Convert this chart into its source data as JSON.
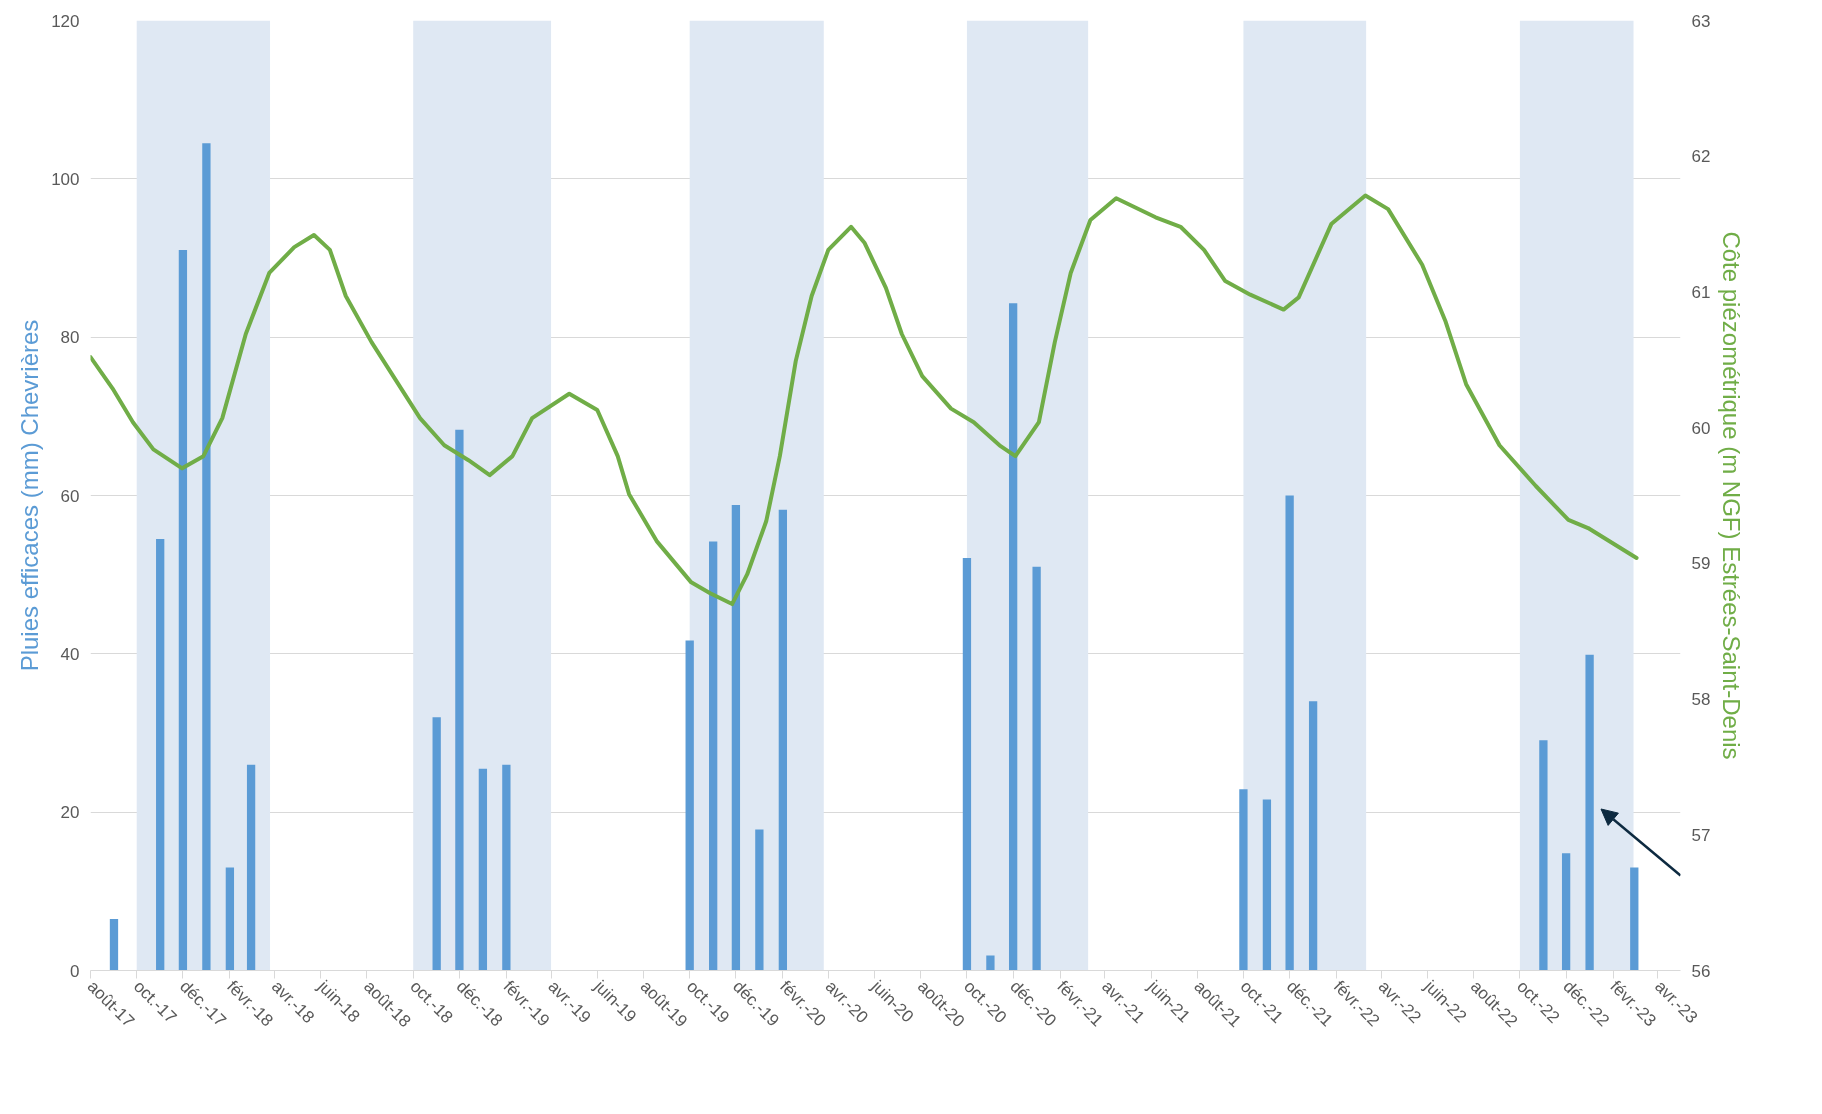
{
  "chart_data": {
    "type": "bar",
    "ylabel": "Pluies efficaces (mm) Chevrières",
    "y2label": "Côte piézométrique (m NGF) Estrées-Saint-Denis",
    "ylim": [
      0,
      120
    ],
    "yticks": [
      0,
      20,
      40,
      60,
      80,
      100,
      120
    ],
    "y2lim": [
      56,
      63
    ],
    "y2ticks": [
      56,
      57,
      58,
      59,
      60,
      61,
      62,
      63
    ],
    "xlim": [
      "2017-08-01",
      "2023-05-01"
    ],
    "xticks": [
      {
        "value": "2017-08",
        "label": "août-17"
      },
      {
        "value": "2017-10",
        "label": "oct.-17"
      },
      {
        "value": "2017-12",
        "label": "déc.-17"
      },
      {
        "value": "2018-02",
        "label": "févr.-18"
      },
      {
        "value": "2018-04",
        "label": "avr.-18"
      },
      {
        "value": "2018-06",
        "label": "juin-18"
      },
      {
        "value": "2018-08",
        "label": "août-18"
      },
      {
        "value": "2018-10",
        "label": "oct.-18"
      },
      {
        "value": "2018-12",
        "label": "déc.-18"
      },
      {
        "value": "2019-02",
        "label": "févr.-19"
      },
      {
        "value": "2019-04",
        "label": "avr.-19"
      },
      {
        "value": "2019-06",
        "label": "juin-19"
      },
      {
        "value": "2019-08",
        "label": "août-19"
      },
      {
        "value": "2019-10",
        "label": "oct.-19"
      },
      {
        "value": "2019-12",
        "label": "déc.-19"
      },
      {
        "value": "2020-02",
        "label": "févr.-20"
      },
      {
        "value": "2020-04",
        "label": "avr.-20"
      },
      {
        "value": "2020-06",
        "label": "juin-20"
      },
      {
        "value": "2020-08",
        "label": "août-20"
      },
      {
        "value": "2020-10",
        "label": "oct.-20"
      },
      {
        "value": "2020-12",
        "label": "déc.-20"
      },
      {
        "value": "2021-02",
        "label": "févr.-21"
      },
      {
        "value": "2021-04",
        "label": "avr.-21"
      },
      {
        "value": "2021-06",
        "label": "juin-21"
      },
      {
        "value": "2021-08",
        "label": "août-21"
      },
      {
        "value": "2021-10",
        "label": "oct.-21"
      },
      {
        "value": "2021-12",
        "label": "déc.-21"
      },
      {
        "value": "2022-02",
        "label": "févr.-22"
      },
      {
        "value": "2022-04",
        "label": "avr.-22"
      },
      {
        "value": "2022-06",
        "label": "juin-22"
      },
      {
        "value": "2022-08",
        "label": "août-22"
      },
      {
        "value": "2022-10",
        "label": "oct.-22"
      },
      {
        "value": "2022-12",
        "label": "déc.-22"
      },
      {
        "value": "2023-02",
        "label": "févr.-23"
      },
      {
        "value": "2023-04",
        "label": "avr.-23"
      }
    ],
    "grid": "y",
    "bands": [
      {
        "axis": "x",
        "from": "2017-10-01",
        "to": "2018-03-26",
        "color": "#dfe8f3"
      },
      {
        "axis": "x",
        "from": "2018-10-01",
        "to": "2019-04-01",
        "color": "#dfe8f3"
      },
      {
        "axis": "x",
        "from": "2019-10-01",
        "to": "2020-03-26",
        "color": "#dfe8f3"
      },
      {
        "axis": "x",
        "from": "2020-10-01",
        "to": "2021-03-10",
        "color": "#dfe8f3"
      },
      {
        "axis": "x",
        "from": "2021-10-01",
        "to": "2022-03-12",
        "color": "#dfe8f3"
      },
      {
        "axis": "x",
        "from": "2022-10-01",
        "to": "2023-02-28",
        "color": "#dfe8f3"
      }
    ],
    "series": [
      {
        "color": "#5b9bd5",
        "x": [
          "2017-09",
          "2017-11",
          "2017-12",
          "2018-01",
          "2018-02",
          "2018-03",
          "2018-11",
          "2018-12",
          "2019-01",
          "2019-02",
          "2019-10",
          "2019-11",
          "2019-12",
          "2020-01",
          "2020-02",
          "2020-10",
          "2020-11",
          "2020-12",
          "2021-01",
          "2021-10",
          "2021-11",
          "2021-12",
          "2022-01",
          "2022-11",
          "2022-12",
          "2023-01",
          "2023-03"
        ],
        "values": [
          6.5,
          54.5,
          91,
          104.5,
          13,
          26,
          32,
          68.3,
          25.5,
          26,
          41.7,
          54.2,
          58.8,
          17.8,
          58.2,
          52.1,
          1.9,
          84.3,
          51,
          22.9,
          21.6,
          60,
          34,
          29.1,
          14.8,
          39.9,
          13
        ]
      },
      {
        "type": "line",
        "axis": "y2",
        "color": "#70ad47",
        "x": [
          "2017-08-01",
          "2017-08-30",
          "2017-09-26",
          "2017-10-23",
          "2017-11-30",
          "2017-12-28",
          "2018-01-22",
          "2018-02-22",
          "2018-03-25",
          "2018-04-27",
          "2018-05-23",
          "2018-06-13",
          "2018-07-04",
          "2018-08-07",
          "2018-09-08",
          "2018-10-10",
          "2018-11-11",
          "2018-12-13",
          "2019-01-10",
          "2019-02-09",
          "2019-03-07",
          "2019-04-25",
          "2019-06-01",
          "2019-06-28",
          "2019-07-13",
          "2019-08-19",
          "2019-10-03",
          "2019-10-28",
          "2019-11-26",
          "2019-12-16",
          "2020-01-10",
          "2020-01-28",
          "2020-02-18",
          "2020-03-10",
          "2020-04-01",
          "2020-05-01",
          "2020-05-19",
          "2020-06-16",
          "2020-07-07",
          "2020-08-03",
          "2020-09-10",
          "2020-10-10",
          "2020-11-13",
          "2020-12-04",
          "2021-01-04",
          "2021-01-25",
          "2021-02-15",
          "2021-03-13",
          "2021-04-16",
          "2021-06-07",
          "2021-07-10",
          "2021-08-10",
          "2021-09-07",
          "2021-10-10",
          "2021-11-23",
          "2021-12-13",
          "2022-01-25",
          "2022-03-11",
          "2022-04-10",
          "2022-05-25",
          "2022-06-25",
          "2022-07-22",
          "2022-09-04",
          "2022-10-22",
          "2022-12-04",
          "2022-12-30",
          "2023-03-04"
        ],
        "values": [
          60.52,
          60.29,
          60.04,
          59.84,
          59.7,
          59.79,
          60.07,
          60.69,
          61.14,
          61.33,
          61.42,
          61.31,
          60.97,
          60.63,
          60.35,
          60.07,
          59.87,
          59.76,
          59.65,
          59.79,
          60.07,
          60.25,
          60.13,
          59.79,
          59.51,
          59.16,
          58.86,
          58.78,
          58.7,
          58.92,
          59.31,
          59.79,
          60.49,
          60.97,
          61.31,
          61.48,
          61.36,
          61.03,
          60.69,
          60.38,
          60.14,
          60.04,
          59.87,
          59.79,
          60.04,
          60.63,
          61.14,
          61.53,
          61.69,
          61.55,
          61.48,
          61.31,
          61.08,
          60.98,
          60.87,
          60.96,
          61.5,
          61.71,
          61.61,
          61.2,
          60.78,
          60.32,
          59.87,
          59.57,
          59.32,
          59.26,
          59.04
        ]
      }
    ]
  }
}
